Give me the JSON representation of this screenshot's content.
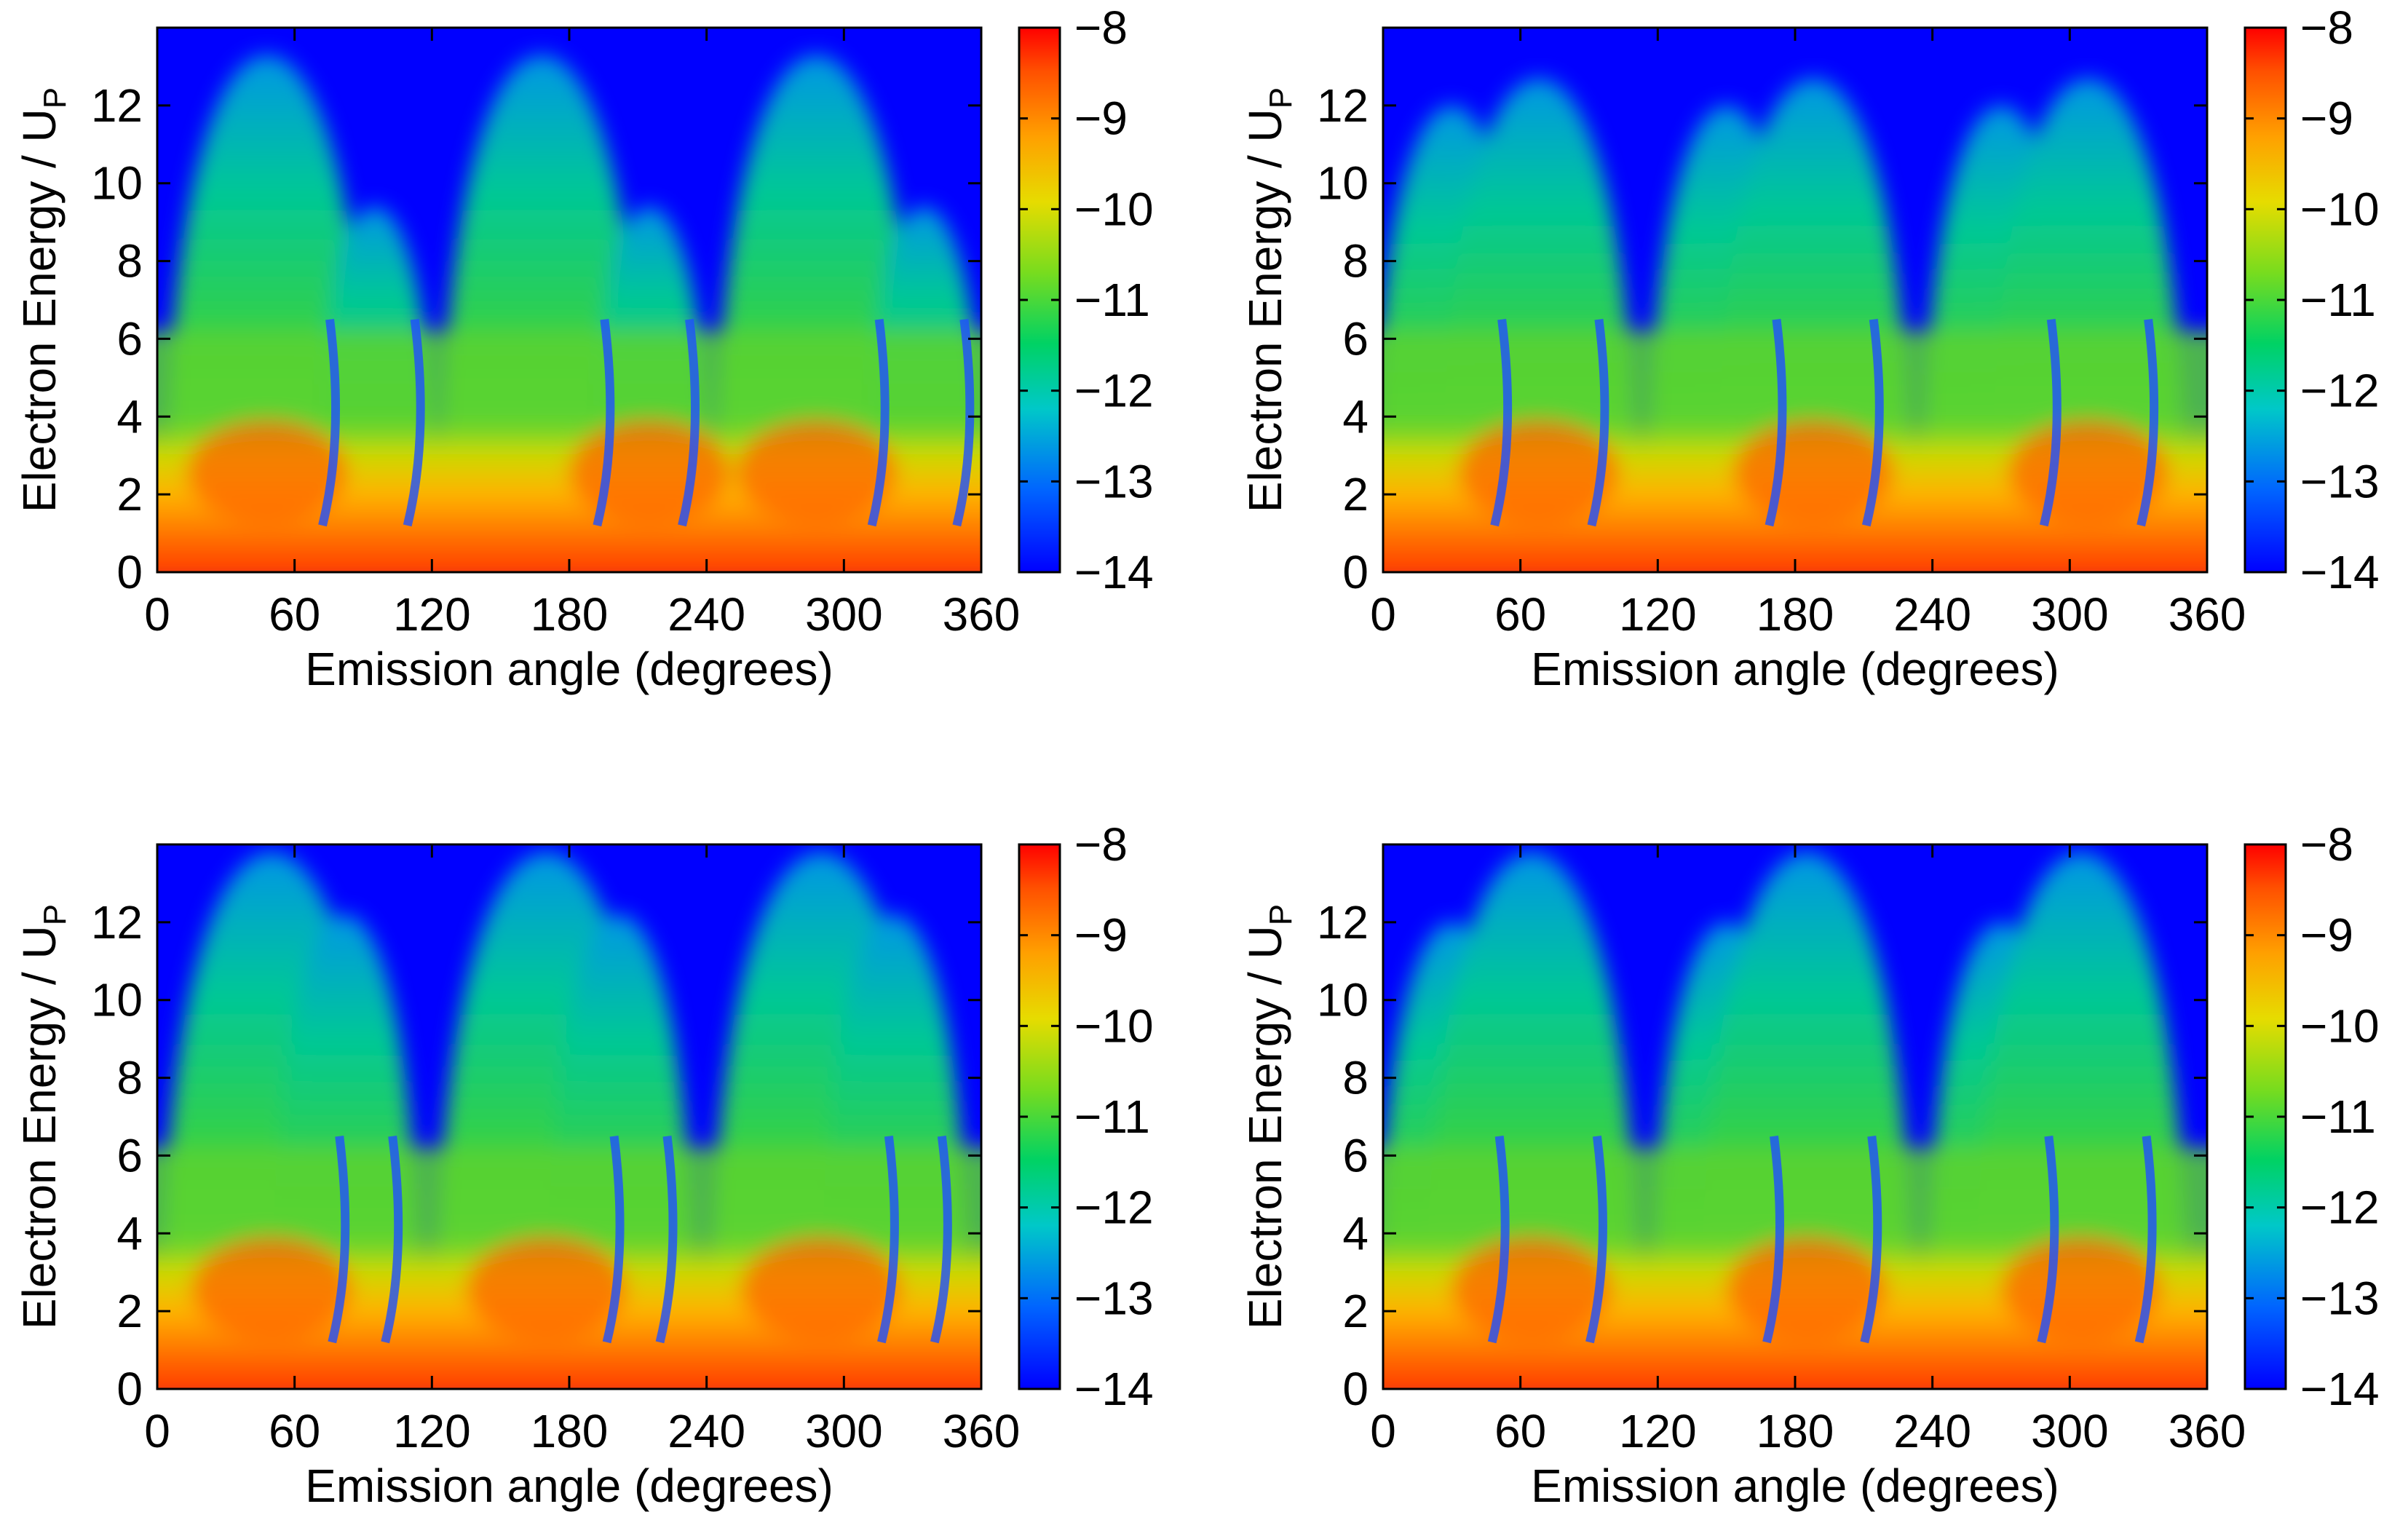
{
  "chart_data": [
    {
      "type": "heatmap",
      "panel": "top-left",
      "xlabel": "Emission angle (degrees)",
      "ylabel_main": "Electron Energy / U",
      "ylabel_sub": "P",
      "xlim": [
        0,
        360
      ],
      "ylim": [
        0,
        14
      ],
      "xticks": [
        0,
        60,
        120,
        180,
        240,
        300,
        360
      ],
      "yticks": [
        0,
        2,
        4,
        6,
        8,
        10,
        12
      ],
      "colorbar": {
        "range": [
          -14,
          -8
        ],
        "ticks": [
          "−8",
          "−9",
          "−10",
          "−11",
          "−12",
          "−13",
          "−14"
        ]
      },
      "lobes": [
        {
          "angle": 48,
          "peak_energy": 13.3,
          "width_deg": 44
        },
        {
          "angle": 168,
          "peak_energy": 13.3,
          "width_deg": 44
        },
        {
          "angle": 288,
          "peak_energy": 13.3,
          "width_deg": 44
        },
        {
          "angle": 95,
          "peak_energy": 9.4,
          "width_deg": 26
        },
        {
          "angle": 215,
          "peak_energy": 9.4,
          "width_deg": 26
        },
        {
          "angle": 335,
          "peak_energy": 9.4,
          "width_deg": 26
        }
      ]
    },
    {
      "type": "heatmap",
      "panel": "top-right",
      "xlabel": "Emission angle (degrees)",
      "ylabel_main": "Electron Energy / U",
      "ylabel_sub": "P",
      "xlim": [
        0,
        360
      ],
      "ylim": [
        0,
        14
      ],
      "xticks": [
        0,
        60,
        120,
        180,
        240,
        300,
        360
      ],
      "yticks": [
        0,
        2,
        4,
        6,
        8,
        10,
        12
      ],
      "colorbar": {
        "range": [
          -14,
          -8
        ],
        "ticks": [
          "−8",
          "−9",
          "−10",
          "−11",
          "−12",
          "−13",
          "−14"
        ]
      },
      "lobes": [
        {
          "angle": 30,
          "peak_energy": 12.0,
          "width_deg": 34
        },
        {
          "angle": 68,
          "peak_energy": 12.7,
          "width_deg": 42
        },
        {
          "angle": 150,
          "peak_energy": 12.0,
          "width_deg": 34
        },
        {
          "angle": 188,
          "peak_energy": 12.7,
          "width_deg": 42
        },
        {
          "angle": 270,
          "peak_energy": 12.0,
          "width_deg": 34
        },
        {
          "angle": 308,
          "peak_energy": 12.7,
          "width_deg": 42
        }
      ]
    },
    {
      "type": "heatmap",
      "panel": "bottom-left",
      "xlabel": "Emission angle (degrees)",
      "ylabel_main": "Electron Energy / U",
      "ylabel_sub": "P",
      "xlim": [
        0,
        360
      ],
      "ylim": [
        0,
        14
      ],
      "xticks": [
        0,
        60,
        120,
        180,
        240,
        300,
        360
      ],
      "yticks": [
        0,
        2,
        4,
        6,
        8,
        10,
        12
      ],
      "colorbar": {
        "range": [
          -14,
          -8
        ],
        "ticks": [
          "−8",
          "−9",
          "−10",
          "−11",
          "−12",
          "−13",
          "−14"
        ]
      },
      "lobes": [
        {
          "angle": 50,
          "peak_energy": 13.8,
          "width_deg": 48
        },
        {
          "angle": 82,
          "peak_energy": 12.2,
          "width_deg": 32
        },
        {
          "angle": 170,
          "peak_energy": 13.8,
          "width_deg": 48
        },
        {
          "angle": 202,
          "peak_energy": 12.2,
          "width_deg": 32
        },
        {
          "angle": 290,
          "peak_energy": 13.8,
          "width_deg": 48
        },
        {
          "angle": 322,
          "peak_energy": 12.2,
          "width_deg": 32
        }
      ]
    },
    {
      "type": "heatmap",
      "panel": "bottom-right",
      "xlabel": "Emission angle (degrees)",
      "ylabel_main": "Electron Energy / U",
      "ylabel_sub": "P",
      "xlim": [
        0,
        360
      ],
      "ylim": [
        0,
        14
      ],
      "xticks": [
        0,
        60,
        120,
        180,
        240,
        300,
        360
      ],
      "yticks": [
        0,
        2,
        4,
        6,
        8,
        10,
        12
      ],
      "colorbar": {
        "range": [
          -14,
          -8
        ],
        "ticks": [
          "−8",
          "−9",
          "−10",
          "−11",
          "−12",
          "−13",
          "−14"
        ]
      },
      "lobes": [
        {
          "angle": 30,
          "peak_energy": 12.0,
          "width_deg": 32
        },
        {
          "angle": 65,
          "peak_energy": 13.8,
          "width_deg": 46
        },
        {
          "angle": 150,
          "peak_energy": 12.0,
          "width_deg": 32
        },
        {
          "angle": 185,
          "peak_energy": 13.8,
          "width_deg": 46
        },
        {
          "angle": 270,
          "peak_energy": 12.0,
          "width_deg": 32
        },
        {
          "angle": 305,
          "peak_energy": 13.8,
          "width_deg": 46
        }
      ]
    }
  ],
  "colormap": {
    "stops": [
      "#0000ff",
      "#0064ff",
      "#00b4c8",
      "#00c896",
      "#3cd23c",
      "#8cdc1e",
      "#d2dc00",
      "#ffc800",
      "#ff9600",
      "#ff5a00",
      "#ff0000"
    ]
  }
}
